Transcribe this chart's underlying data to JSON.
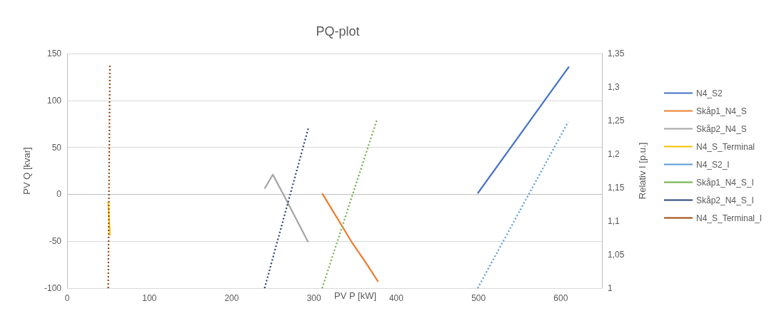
{
  "chart_data": {
    "type": "line",
    "title": "PQ-plot",
    "xlabel": "PV P [kW]",
    "ylabel": "PV Q [kvar]",
    "y2label": "Relativ I [p.u.]",
    "xlim": [
      0,
      650
    ],
    "xticks": [
      0,
      100,
      200,
      300,
      400,
      500,
      600
    ],
    "ylim": [
      -100,
      150
    ],
    "yticks": [
      -100,
      -50,
      0,
      50,
      100,
      150
    ],
    "y2lim": [
      1,
      1.35
    ],
    "y2ticks": [
      {
        "value": 1,
        "label": "1"
      },
      {
        "value": 1.05,
        "label": "1,05"
      },
      {
        "value": 1.1,
        "label": "1,1"
      },
      {
        "value": 1.15,
        "label": "1,15"
      },
      {
        "value": 1.2,
        "label": "1,2"
      },
      {
        "value": 1.25,
        "label": "1,25"
      },
      {
        "value": 1.3,
        "label": "1,3"
      },
      {
        "value": 1.35,
        "label": "1,35"
      }
    ],
    "grid": "y",
    "legend": "right",
    "marker": "none",
    "series": [
      {
        "name": "N4_S2",
        "color": "#4472c4",
        "line_style": "solid",
        "x": [
          499,
          610
        ],
        "values": [
          1,
          136
        ]
      },
      {
        "name": "Skåp1_N4_S",
        "color": "#ed7d31",
        "line_style": "solid",
        "x": [
          310,
          346,
          364,
          378
        ],
        "values": [
          1,
          -51,
          -74,
          -93
        ]
      },
      {
        "name": "Skåp2_N4_S",
        "color": "#a5a5a5",
        "line_style": "solid",
        "x": [
          240,
          250,
          264,
          293
        ],
        "values": [
          6,
          21,
          -2,
          -51
        ]
      },
      {
        "name": "N4_S_Terminal",
        "color": "#ffc000",
        "line_style": "solid",
        "x": [
          50,
          52
        ],
        "values": [
          -8,
          -44
        ]
      },
      {
        "name": "N4_S2_I",
        "color": "#5b9bd5",
        "line_style": "dotted",
        "axis": "y2",
        "x": [
          499,
          609
        ],
        "values": [
          1,
          1.248
        ]
      },
      {
        "name": "Skåp1_N4_S_I",
        "color": "#70ad47",
        "line_style": "dotted",
        "axis": "y2",
        "x": [
          310,
          377
        ],
        "values": [
          1,
          1.253
        ]
      },
      {
        "name": "Skåp2_N4_S_I",
        "color": "#264478",
        "line_style": "dotted",
        "axis": "y2",
        "x": [
          240,
          293
        ],
        "values": [
          1,
          1.238
        ]
      },
      {
        "name": "N4_S_Terminal_I",
        "color": "#9e480e",
        "line_style": "dotted",
        "axis": "y2",
        "x": [
          50,
          52
        ],
        "values": [
          1,
          1.332
        ]
      }
    ]
  }
}
